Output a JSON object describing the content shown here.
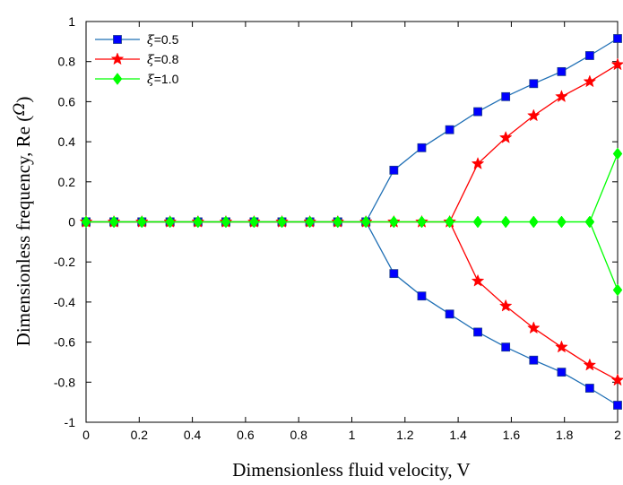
{
  "chart_data": {
    "type": "line",
    "xlabel": "Dimensionless fluid velocity, V",
    "ylabel_prefix": "Dimensionless frequency, Re (",
    "ylabel_symbol": "Ω",
    "ylabel_suffix": ")",
    "xlim": [
      0,
      2
    ],
    "ylim": [
      -1,
      1
    ],
    "xticks": [
      0,
      0.2,
      0.4,
      0.6,
      0.8,
      1,
      1.2,
      1.4,
      1.6,
      1.8,
      2
    ],
    "xtick_labels": [
      "0",
      "0.2",
      "0.4",
      "0.6",
      "0.8",
      "1",
      "1.2",
      "1.4",
      "1.6",
      "1.8",
      "2"
    ],
    "yticks": [
      -1,
      -0.8,
      -0.6,
      -0.4,
      -0.2,
      0,
      0.2,
      0.4,
      0.6,
      0.8,
      1
    ],
    "ytick_labels": [
      "-1",
      "-0.8",
      "-0.6",
      "-0.4",
      "-0.2",
      "0",
      "0.2",
      "0.4",
      "0.6",
      "0.8",
      "1"
    ],
    "grid": false,
    "legend_position": "top-left",
    "x": [
      0,
      0.105,
      0.21,
      0.316,
      0.421,
      0.526,
      0.632,
      0.737,
      0.842,
      0.947,
      1.053,
      1.158,
      1.263,
      1.368,
      1.474,
      1.579,
      1.684,
      1.789,
      1.895,
      2.0
    ],
    "series": [
      {
        "name": "ξ=0.5",
        "legend_symbol": "ξ",
        "legend_value": "=0.5",
        "color": "#1f6fb5",
        "marker": "square",
        "marker_color": "#0000ff",
        "upper": [
          0,
          0,
          0,
          0,
          0,
          0,
          0,
          0,
          0,
          0,
          0,
          0.258,
          0.37,
          0.46,
          0.55,
          0.625,
          0.69,
          0.75,
          0.83,
          0.915
        ],
        "lower": [
          0,
          0,
          0,
          0,
          0,
          0,
          0,
          0,
          0,
          0,
          0,
          -0.258,
          -0.37,
          -0.46,
          -0.55,
          -0.625,
          -0.69,
          -0.75,
          -0.83,
          -0.915
        ]
      },
      {
        "name": "ξ=0.8",
        "legend_symbol": "ξ",
        "legend_value": "=0.8",
        "color": "#ff0000",
        "marker": "star",
        "marker_color": "#ff0000",
        "upper": [
          0,
          0,
          0,
          0,
          0,
          0,
          0,
          0,
          0,
          0,
          0,
          0,
          0,
          0,
          0.29,
          0.42,
          0.53,
          0.625,
          0.7,
          0.785
        ],
        "lower": [
          0,
          0,
          0,
          0,
          0,
          0,
          0,
          0,
          0,
          0,
          0,
          0,
          0,
          0,
          -0.295,
          -0.42,
          -0.53,
          -0.625,
          -0.715,
          -0.79
        ]
      },
      {
        "name": "ξ=1.0",
        "legend_symbol": "ξ",
        "legend_value": "=1.0",
        "color": "#00ff00",
        "marker": "diamond",
        "marker_color": "#00ff00",
        "upper": [
          0,
          0,
          0,
          0,
          0,
          0,
          0,
          0,
          0,
          0,
          0,
          0,
          0,
          0,
          0,
          0,
          0,
          0,
          0,
          0.34
        ],
        "lower": [
          0,
          0,
          0,
          0,
          0,
          0,
          0,
          0,
          0,
          0,
          0,
          0,
          0,
          0,
          0,
          0,
          0,
          0,
          0,
          -0.34
        ]
      }
    ]
  }
}
